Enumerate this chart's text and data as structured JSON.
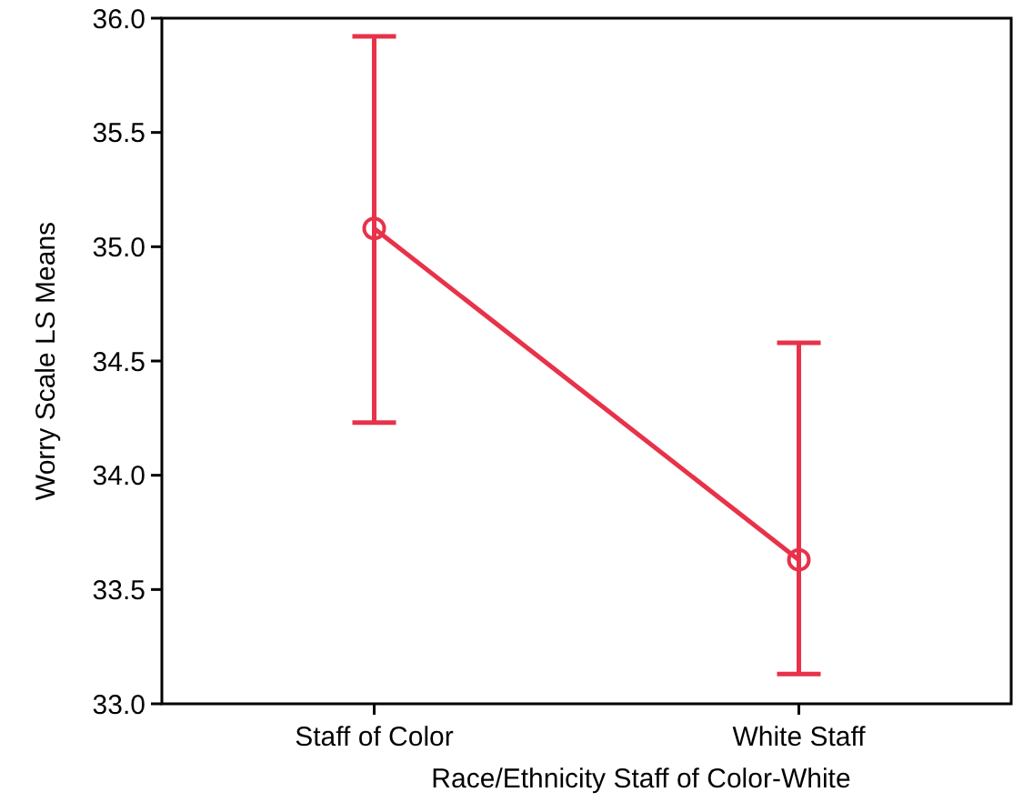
{
  "chart_data": {
    "type": "line",
    "xlabel": "Race/Ethnicity Staff of Color-White",
    "ylabel": "Worry Scale LS Means",
    "categories": [
      "Staff of Color",
      "White Staff"
    ],
    "series": [
      {
        "color": "#e8324a",
        "values": [
          35.08,
          33.63
        ],
        "errors": [
          [
            34.23,
            35.92
          ],
          [
            33.13,
            34.58
          ]
        ]
      }
    ],
    "ylim": [
      33.0,
      36.0
    ],
    "yticks": [
      {
        "value": 33,
        "label": "33.0"
      },
      {
        "value": 33.5,
        "label": "33.5"
      },
      {
        "value": 34,
        "label": "34.0"
      },
      {
        "value": 34.5,
        "label": "34.5"
      },
      {
        "value": 35,
        "label": "35.0"
      },
      {
        "value": 35.5,
        "label": "35.5"
      },
      {
        "value": 36,
        "label": "36.0"
      }
    ],
    "marker": "circle",
    "line_style": "solid",
    "grid": false
  }
}
